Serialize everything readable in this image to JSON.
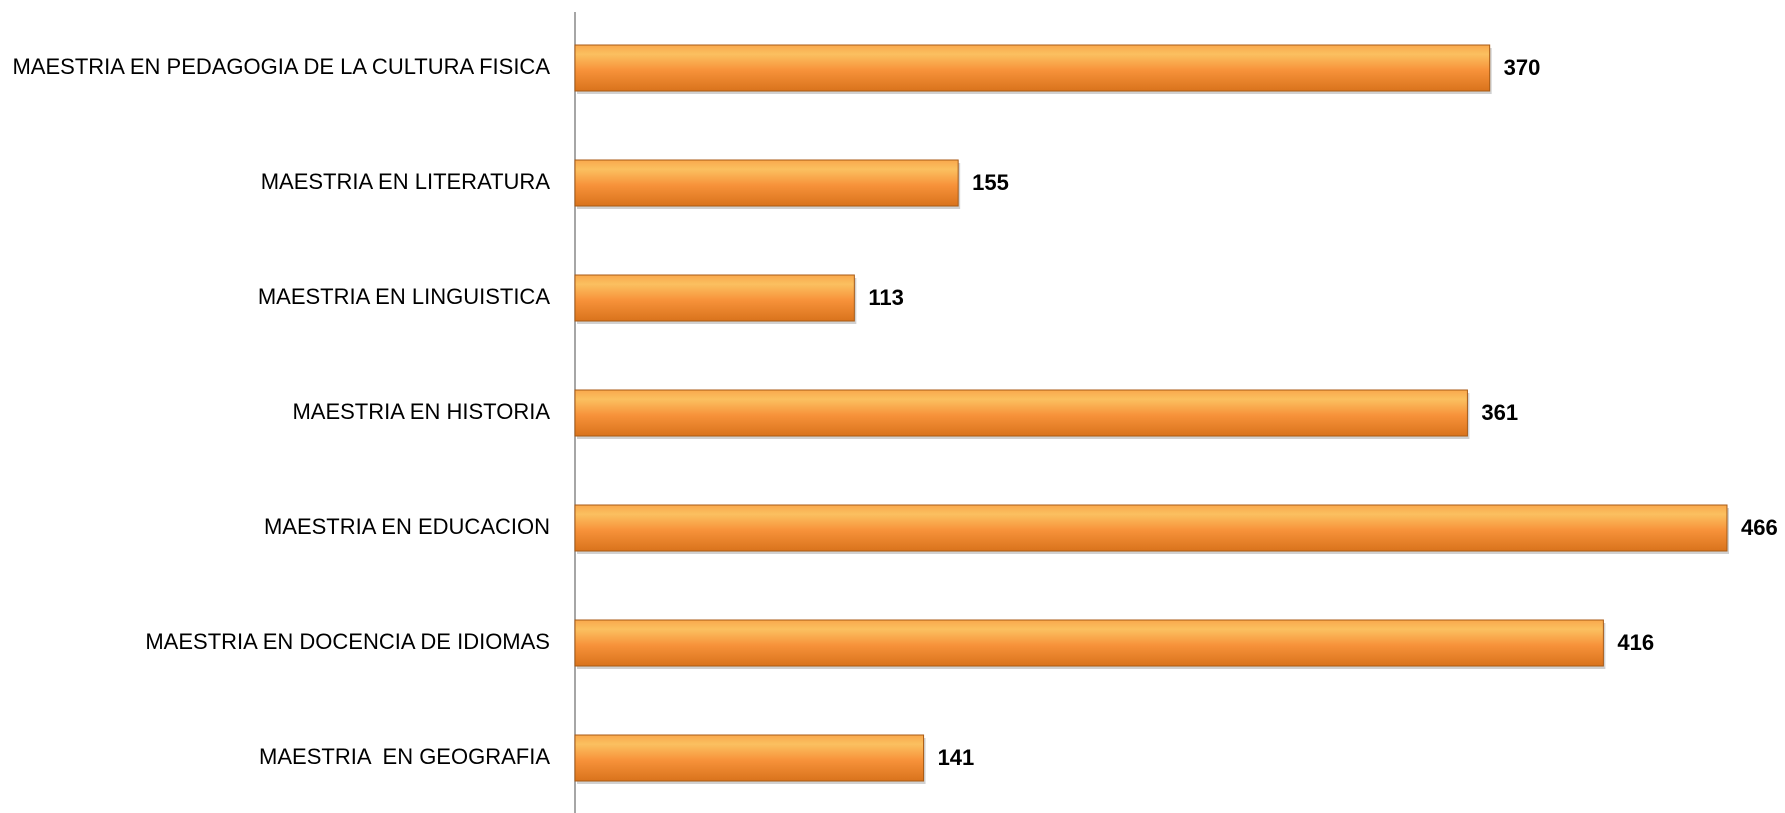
{
  "chart_data": {
    "type": "bar",
    "orientation": "horizontal",
    "categories": [
      "MAESTRIA EN PEDAGOGIA DE LA CULTURA FISICA",
      "MAESTRIA EN LITERATURA",
      "MAESTRIA EN LINGUISTICA",
      "MAESTRIA EN HISTORIA",
      "MAESTRIA EN EDUCACION",
      "MAESTRIA EN DOCENCIA DE IDIOMAS",
      "MAESTRIA  EN GEOGRAFIA"
    ],
    "values": [
      370,
      155,
      113,
      361,
      466,
      416,
      141
    ],
    "color": "#f7923a"
  }
}
